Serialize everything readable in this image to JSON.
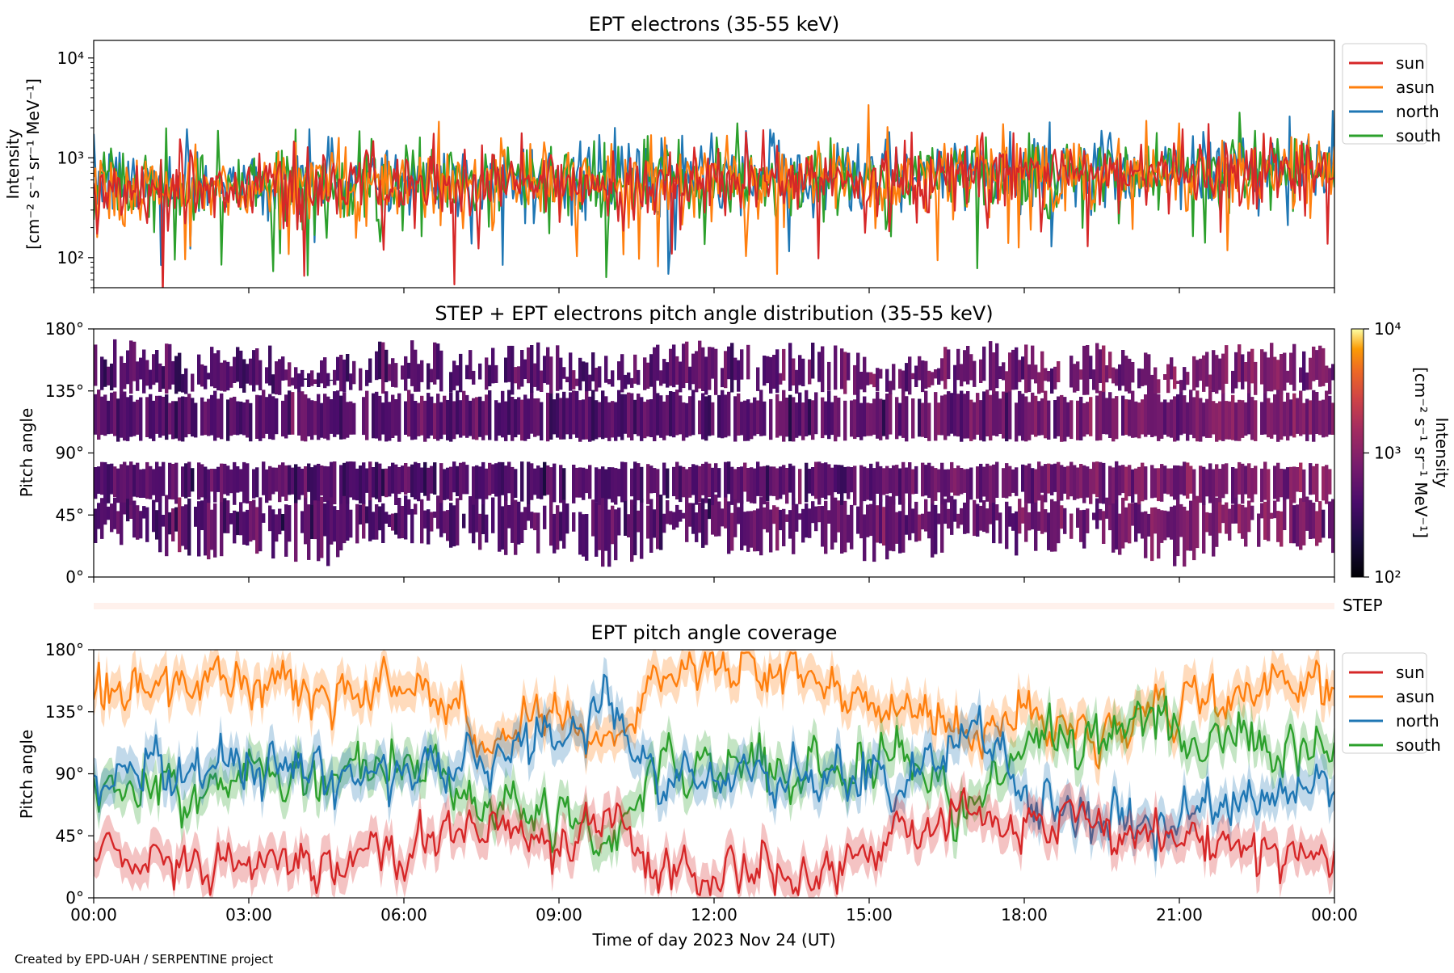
{
  "credit": "Created by EPD-UAH / SERPENTINE project",
  "colors": {
    "sun": "#d62728",
    "asun": "#ff7f0e",
    "north": "#1f77b4",
    "south": "#2ca02c"
  },
  "time_ticks": [
    "00:00",
    "03:00",
    "06:00",
    "09:00",
    "12:00",
    "15:00",
    "18:00",
    "21:00",
    "00:00"
  ],
  "xlabel": "Time of day 2023 Nov 24 (UT)",
  "step_label": "STEP",
  "chart_data": [
    {
      "type": "line",
      "title": "EPT electrons (35-55 keV)",
      "ylabel_line1": "Intensity",
      "ylabel_line2": "[cm⁻² s⁻¹ sr⁻¹ MeV⁻¹]",
      "yscale": "log",
      "ylim": [
        50,
        15000
      ],
      "yticks": [
        "10²",
        "10³",
        "10⁴"
      ],
      "xlim_hours": [
        0,
        24
      ],
      "legend": "outside-right-top",
      "series": [
        {
          "name": "north",
          "color": "#1f77b4",
          "median_start": 550,
          "median_end": 850,
          "spread": 0.18
        },
        {
          "name": "south",
          "color": "#2ca02c",
          "median_start": 520,
          "median_end": 820,
          "spread": 0.18
        },
        {
          "name": "asun",
          "color": "#ff7f0e",
          "median_start": 520,
          "median_end": 800,
          "spread": 0.19
        },
        {
          "name": "sun",
          "color": "#d62728",
          "median_start": 480,
          "median_end": 780,
          "spread": 0.18
        }
      ],
      "legend_order": [
        "sun",
        "asun",
        "north",
        "south"
      ]
    },
    {
      "type": "heatmap",
      "title": "STEP + EPT electrons pitch angle distribution (35-55 keV)",
      "ylabel": "Pitch angle",
      "ylim": [
        0,
        180
      ],
      "yticks": [
        "0°",
        "45°",
        "90°",
        "135°",
        "180°"
      ],
      "xlim_hours": [
        0,
        24
      ],
      "colorbar": {
        "scale": "log",
        "range": [
          100,
          10000
        ],
        "ticks": [
          "10²",
          "10³",
          "10⁴"
        ],
        "label": "Intensity",
        "label_units": "[cm⁻² s⁻¹ sr⁻¹ MeV⁻¹]"
      },
      "intensity_start": 450,
      "intensity_end": 800
    },
    {
      "type": "line",
      "title": "EPT pitch angle coverage",
      "ylabel": "Pitch angle",
      "ylim": [
        0,
        180
      ],
      "yticks": [
        "0°",
        "45°",
        "90°",
        "135°",
        "180°"
      ],
      "xlim_hours": [
        0,
        24
      ],
      "legend": "outside-right-top",
      "series": [
        {
          "name": "sun",
          "color": "#d62728",
          "anchors": [
            [
              0,
              30
            ],
            [
              3,
              25
            ],
            [
              6,
              30
            ],
            [
              7.5,
              55
            ],
            [
              9,
              40
            ],
            [
              10,
              65
            ],
            [
              11,
              15
            ],
            [
              14,
              20
            ],
            [
              15.5,
              40
            ],
            [
              17,
              60
            ],
            [
              18,
              50
            ],
            [
              19,
              65
            ],
            [
              21,
              45
            ],
            [
              24,
              30
            ]
          ]
        },
        {
          "name": "asun",
          "color": "#ff7f0e",
          "anchors": [
            [
              0,
              150
            ],
            [
              3,
              160
            ],
            [
              6,
              150
            ],
            [
              7.5,
              120
            ],
            [
              9,
              135
            ],
            [
              10,
              115
            ],
            [
              11,
              170
            ],
            [
              14,
              160
            ],
            [
              15.5,
              140
            ],
            [
              17,
              120
            ],
            [
              18,
              130
            ],
            [
              19,
              115
            ],
            [
              21,
              140
            ],
            [
              24,
              150
            ]
          ]
        },
        {
          "name": "north",
          "color": "#1f77b4",
          "anchors": [
            [
              0,
              90
            ],
            [
              3,
              95
            ],
            [
              6,
              90
            ],
            [
              7.5,
              105
            ],
            [
              9,
              115
            ],
            [
              10,
              140
            ],
            [
              11,
              85
            ],
            [
              14,
              90
            ],
            [
              15.5,
              85
            ],
            [
              17,
              130
            ],
            [
              18,
              75
            ],
            [
              19,
              55
            ],
            [
              21,
              60
            ],
            [
              24,
              80
            ]
          ]
        },
        {
          "name": "south",
          "color": "#2ca02c",
          "anchors": [
            [
              0,
              85
            ],
            [
              3,
              85
            ],
            [
              6,
              95
            ],
            [
              7.5,
              75
            ],
            [
              9,
              65
            ],
            [
              10,
              40
            ],
            [
              11,
              95
            ],
            [
              14,
              95
            ],
            [
              15.5,
              100
            ],
            [
              17,
              60
            ],
            [
              18,
              110
            ],
            [
              19,
              125
            ],
            [
              21,
              120
            ],
            [
              24,
              105
            ]
          ]
        }
      ],
      "legend_order": [
        "sun",
        "asun",
        "north",
        "south"
      ]
    }
  ]
}
